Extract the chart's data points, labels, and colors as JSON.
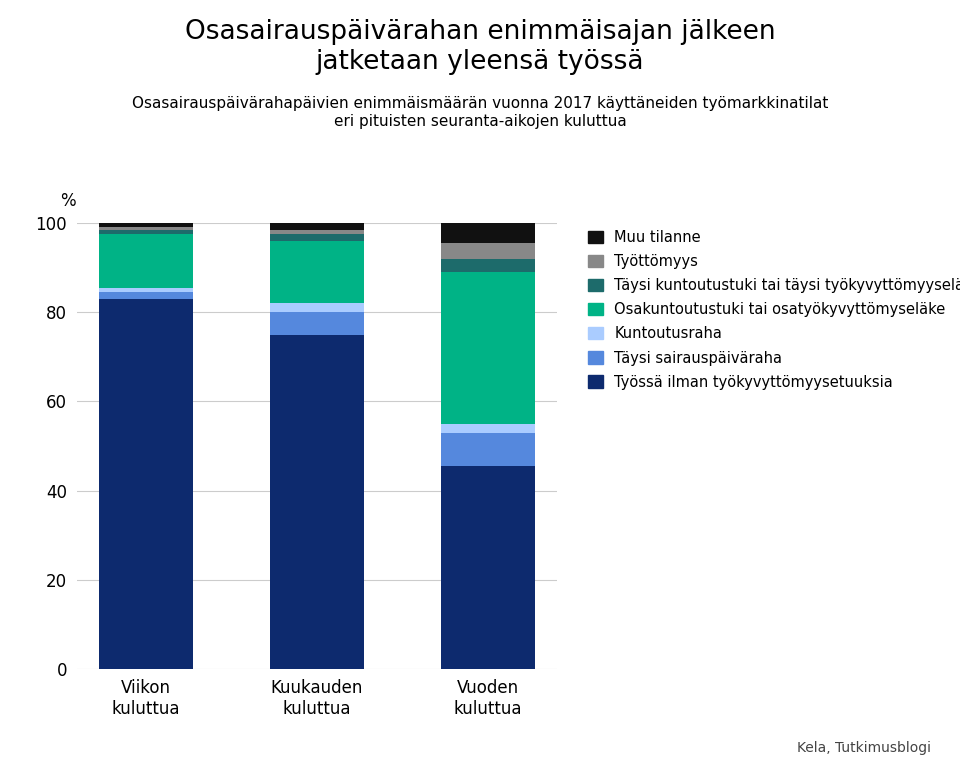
{
  "title": "Osasairauspäivärahan enimmäisajan jälkeen\njatketaan yleensä työssä",
  "subtitle": "Osasairauspäivärahapäivien enimmäismäärän vuonna 2017 käyttäneiden työmarkkinatilat\neri pituisten seuranta-aikojen kuluttua",
  "categories": [
    "Viikon\nkuluttua",
    "Kuukauden\nkuluttua",
    "Vuoden\nkuluttua"
  ],
  "legend_labels": [
    "Muu tilanne",
    "Työttömyys",
    "Täysi kuntoutustuki tai täysi työkyvyttömyyseläke",
    "Osakuntoutustuki tai osatyökyvyttömyseläke",
    "Kuntoutusraha",
    "Täysi sairauspäiväraha",
    "Työssä ilman työkyvyttömyysetuuksia"
  ],
  "seg_colors": [
    "#111111",
    "#888888",
    "#1d6b6b",
    "#00b386",
    "#aaccff",
    "#5588dd",
    "#0d2a6e"
  ],
  "values": [
    [
      1.0,
      1.5,
      4.5
    ],
    [
      0.5,
      1.0,
      3.5
    ],
    [
      1.0,
      1.5,
      3.0
    ],
    [
      12.0,
      14.0,
      34.0
    ],
    [
      1.0,
      2.0,
      2.0
    ],
    [
      1.5,
      5.0,
      7.5
    ],
    [
      83.0,
      75.0,
      45.5
    ]
  ],
  "ylabel": "%",
  "ylim": [
    0,
    100
  ],
  "yticks": [
    0,
    20,
    40,
    60,
    80,
    100
  ],
  "source": "Kela, Tutkimusblogi",
  "background_color": "#ffffff",
  "bar_width": 0.55
}
